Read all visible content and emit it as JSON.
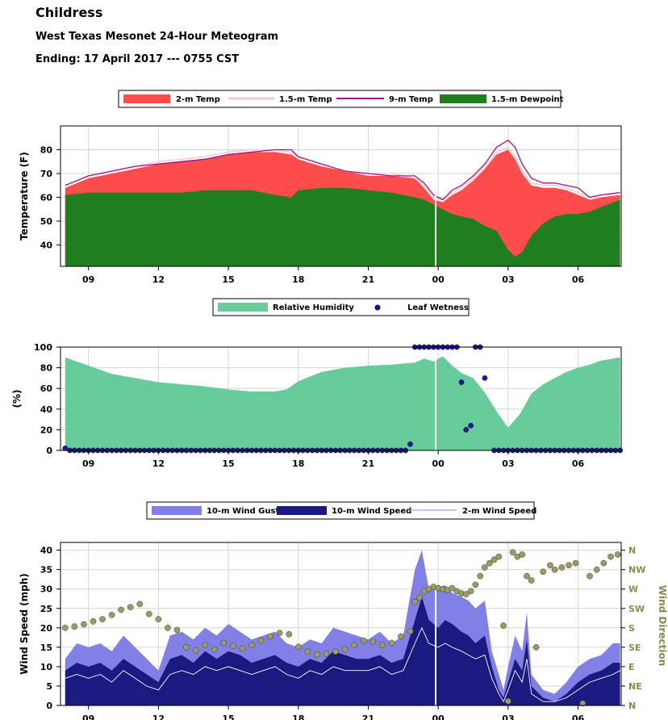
{
  "header": {
    "station": "Childress",
    "title": "West Texas Mesonet 24-Hour Meteogram",
    "ending": "Ending: 17 April 2017 --- 0755 CST"
  },
  "x_ticks": [
    "09",
    "12",
    "15",
    "18",
    "21",
    "00",
    "03",
    "06"
  ],
  "chart_data": [
    {
      "type": "area",
      "ylabel": "Temperature (F)",
      "ylim": [
        31,
        90
      ],
      "yticks": [
        40,
        50,
        60,
        70,
        80
      ],
      "hours": [
        8.0,
        9.0,
        10.0,
        11.0,
        12.0,
        13.0,
        14.0,
        15.0,
        16.0,
        17.0,
        17.7,
        18.0,
        19.0,
        20.0,
        21.0,
        22.0,
        23.0,
        23.4,
        23.8,
        24.2,
        24.6,
        25.0,
        25.5,
        26.0,
        26.5,
        27.0,
        27.3,
        27.6,
        28.0,
        28.5,
        29.0,
        29.5,
        30.0,
        30.5,
        31.0,
        31.8
      ],
      "legend": [
        "2-m Temp",
        "1.5-m Temp",
        "9-m Temp",
        "1.5-m Dewpoint"
      ],
      "colors": {
        "temp2m": "#ff4d4d",
        "temp15m": "#ffc8c8",
        "temp9m": "#a0108c",
        "dewpoint": "#1f7f1f"
      },
      "temp_2m": [
        64,
        68,
        70,
        72,
        74,
        75,
        76,
        78,
        79,
        79,
        78,
        76,
        73,
        71,
        69,
        69,
        68,
        64,
        59,
        58,
        61,
        63,
        67,
        72,
        78,
        80,
        76,
        70,
        65,
        64,
        64,
        63,
        61,
        59,
        60,
        61
      ],
      "temp_15m": [
        65,
        69,
        71,
        73,
        75,
        76,
        77,
        79,
        80,
        80,
        79,
        77,
        74,
        71,
        70,
        70,
        68,
        65,
        60,
        59,
        62,
        64,
        68,
        73,
        79,
        81,
        77,
        71,
        66,
        65,
        65,
        64,
        62,
        60,
        61,
        62
      ],
      "temp_9m": [
        65,
        69,
        71,
        73,
        74,
        75,
        76,
        78,
        79,
        80,
        80,
        77,
        74,
        71,
        70,
        69,
        69,
        66,
        61,
        59,
        63,
        65,
        69,
        74,
        81,
        84,
        81,
        74,
        68,
        66,
        66,
        65,
        64,
        60,
        61,
        62
      ],
      "dewpoint": [
        61,
        62,
        62,
        62,
        62,
        62,
        63,
        63,
        63,
        61,
        60,
        63,
        64,
        64,
        63,
        62,
        60,
        59,
        57,
        55,
        53,
        52,
        51,
        48,
        46,
        38,
        35,
        37,
        44,
        49,
        52,
        53,
        53,
        54,
        56,
        59
      ]
    },
    {
      "type": "area",
      "ylabel": "(%)",
      "ylim": [
        0,
        100
      ],
      "yticks": [
        0,
        20,
        40,
        60,
        80,
        100
      ],
      "legend": [
        "Relative Humidity",
        "Leaf Wetness"
      ],
      "colors": {
        "rh": "#66cc99",
        "leaf": "#1a1aa0"
      },
      "hours": [
        8.0,
        9.0,
        10.0,
        11.0,
        12.0,
        13.0,
        14.0,
        15.0,
        16.0,
        17.0,
        17.5,
        18.0,
        19.0,
        20.0,
        21.0,
        22.0,
        23.0,
        23.4,
        23.8,
        24.2,
        24.6,
        25.0,
        25.5,
        26.0,
        26.5,
        27.0,
        27.5,
        28.0,
        28.5,
        29.0,
        29.5,
        30.0,
        30.5,
        31.0,
        31.8
      ],
      "rh": [
        90,
        82,
        74,
        70,
        66,
        64,
        62,
        59,
        57,
        57,
        59,
        67,
        76,
        80,
        82,
        83,
        85,
        89,
        86,
        91,
        82,
        75,
        70,
        56,
        38,
        22,
        35,
        55,
        64,
        70,
        76,
        80,
        83,
        87,
        90
      ],
      "leaf_wetness": [
        [
          8.0,
          2
        ],
        [
          8.2,
          0
        ],
        [
          8.4,
          0
        ],
        [
          8.6,
          0
        ],
        [
          8.8,
          0
        ],
        [
          9.0,
          0
        ],
        [
          9.2,
          0
        ],
        [
          9.4,
          0
        ],
        [
          9.6,
          0
        ],
        [
          9.8,
          0
        ],
        [
          10.0,
          0
        ],
        [
          10.2,
          0
        ],
        [
          10.4,
          0
        ],
        [
          10.6,
          0
        ],
        [
          10.8,
          0
        ],
        [
          11.0,
          0
        ],
        [
          11.2,
          0
        ],
        [
          11.4,
          0
        ],
        [
          11.6,
          0
        ],
        [
          11.8,
          0
        ],
        [
          12.0,
          0
        ],
        [
          12.2,
          0
        ],
        [
          12.4,
          0
        ],
        [
          12.6,
          0
        ],
        [
          12.8,
          0
        ],
        [
          13.0,
          0
        ],
        [
          13.2,
          0
        ],
        [
          13.4,
          0
        ],
        [
          13.6,
          0
        ],
        [
          13.8,
          0
        ],
        [
          14.0,
          0
        ],
        [
          14.2,
          0
        ],
        [
          14.4,
          0
        ],
        [
          14.6,
          0
        ],
        [
          14.8,
          0
        ],
        [
          15.0,
          0
        ],
        [
          15.2,
          0
        ],
        [
          15.4,
          0
        ],
        [
          15.6,
          0
        ],
        [
          15.8,
          0
        ],
        [
          16.0,
          0
        ],
        [
          16.2,
          0
        ],
        [
          16.4,
          0
        ],
        [
          16.6,
          0
        ],
        [
          16.8,
          0
        ],
        [
          17.0,
          0
        ],
        [
          17.2,
          0
        ],
        [
          17.4,
          0
        ],
        [
          17.6,
          0
        ],
        [
          17.8,
          0
        ],
        [
          18.0,
          0
        ],
        [
          18.2,
          0
        ],
        [
          18.4,
          0
        ],
        [
          18.6,
          0
        ],
        [
          18.8,
          0
        ],
        [
          19.0,
          0
        ],
        [
          19.2,
          0
        ],
        [
          19.4,
          0
        ],
        [
          19.6,
          0
        ],
        [
          19.8,
          0
        ],
        [
          20.0,
          0
        ],
        [
          20.2,
          0
        ],
        [
          20.4,
          0
        ],
        [
          20.6,
          0
        ],
        [
          20.8,
          0
        ],
        [
          21.0,
          0
        ],
        [
          21.2,
          0
        ],
        [
          21.4,
          0
        ],
        [
          21.6,
          0
        ],
        [
          21.8,
          0
        ],
        [
          22.0,
          0
        ],
        [
          22.2,
          0
        ],
        [
          22.4,
          0
        ],
        [
          22.6,
          0
        ],
        [
          22.8,
          6
        ],
        [
          23.0,
          100
        ],
        [
          23.2,
          100
        ],
        [
          23.4,
          100
        ],
        [
          23.6,
          100
        ],
        [
          23.8,
          100
        ],
        [
          24.0,
          100
        ],
        [
          24.2,
          100
        ],
        [
          24.4,
          100
        ],
        [
          24.6,
          100
        ],
        [
          24.8,
          100
        ],
        [
          25.0,
          66
        ],
        [
          25.2,
          20
        ],
        [
          25.4,
          24
        ],
        [
          25.6,
          100
        ],
        [
          25.8,
          100
        ],
        [
          26.0,
          70
        ],
        [
          26.4,
          0
        ],
        [
          26.6,
          0
        ],
        [
          26.8,
          0
        ],
        [
          27.0,
          0
        ],
        [
          27.2,
          0
        ],
        [
          27.4,
          0
        ],
        [
          27.6,
          0
        ],
        [
          27.8,
          0
        ],
        [
          28.0,
          0
        ],
        [
          28.2,
          0
        ],
        [
          28.4,
          0
        ],
        [
          28.6,
          0
        ],
        [
          28.8,
          0
        ],
        [
          29.0,
          0
        ],
        [
          29.2,
          0
        ],
        [
          29.4,
          0
        ],
        [
          29.6,
          0
        ],
        [
          29.8,
          0
        ],
        [
          30.0,
          0
        ],
        [
          30.2,
          0
        ],
        [
          30.4,
          0
        ],
        [
          30.6,
          0
        ],
        [
          30.8,
          0
        ],
        [
          31.0,
          0
        ],
        [
          31.2,
          0
        ],
        [
          31.4,
          0
        ],
        [
          31.6,
          0
        ],
        [
          31.8,
          0
        ]
      ]
    },
    {
      "type": "area",
      "ylabel": "Wind Speed (mph)",
      "y2label": "Wind Direction",
      "ylim": [
        0,
        42
      ],
      "yticks": [
        0,
        5,
        10,
        15,
        20,
        25,
        30,
        35,
        40
      ],
      "direction_ticks": [
        "N",
        "NE",
        "E",
        "SE",
        "S",
        "SW",
        "W",
        "NW",
        "N"
      ],
      "legend": [
        "10-m Wind Gust",
        "10-m Wind Speed",
        "2-m Wind Speed"
      ],
      "colors": {
        "gust": "#8080e6",
        "speed": "#1a1a80",
        "speed2m": "#ffffff",
        "direction": "#9a9a6a",
        "axis2": "#8a8a4a"
      },
      "hours": [
        8.0,
        8.5,
        9.0,
        9.5,
        10.0,
        10.5,
        11.0,
        11.5,
        12.0,
        12.5,
        13.0,
        13.5,
        14.0,
        14.5,
        15.0,
        15.5,
        16.0,
        16.5,
        17.0,
        17.5,
        18.0,
        18.5,
        19.0,
        19.5,
        20.0,
        20.5,
        21.0,
        21.5,
        22.0,
        22.5,
        23.0,
        23.3,
        23.6,
        24.0,
        24.3,
        24.6,
        25.0,
        25.3,
        25.6,
        26.0,
        26.3,
        26.6,
        26.8,
        27.0,
        27.3,
        27.6,
        27.8,
        28.0,
        28.5,
        29.0,
        29.5,
        30.0,
        30.5,
        31.0,
        31.5,
        31.8
      ],
      "gust": [
        12,
        16,
        15,
        16,
        14,
        18,
        15,
        12,
        9,
        18,
        19,
        17,
        20,
        18,
        21,
        19,
        17,
        18,
        19,
        16,
        15,
        17,
        16,
        20,
        19,
        18,
        17,
        19,
        16,
        18,
        35,
        40,
        30,
        30,
        31,
        29,
        28,
        27,
        25,
        27,
        14,
        8,
        4,
        10,
        18,
        14,
        24,
        8,
        4,
        3,
        6,
        10,
        12,
        13,
        16,
        16
      ],
      "speed": [
        9,
        11,
        10,
        11,
        9,
        12,
        10,
        8,
        6,
        12,
        13,
        11,
        14,
        12,
        14,
        13,
        11,
        12,
        13,
        11,
        10,
        12,
        11,
        14,
        13,
        12,
        12,
        13,
        11,
        12,
        22,
        28,
        22,
        20,
        22,
        21,
        19,
        18,
        16,
        18,
        10,
        4,
        2,
        6,
        12,
        9,
        17,
        5,
        2,
        1,
        3,
        6,
        8,
        9,
        11,
        11
      ],
      "speed_2m": [
        7,
        8,
        7,
        8,
        6,
        9,
        7,
        5,
        4,
        8,
        9,
        8,
        10,
        9,
        10,
        9,
        8,
        9,
        10,
        8,
        7,
        9,
        8,
        10,
        9,
        9,
        9,
        10,
        8,
        9,
        16,
        20,
        16,
        15,
        16,
        15,
        14,
        13,
        12,
        13,
        7,
        3,
        1,
        4,
        9,
        6,
        12,
        3,
        1,
        1,
        2,
        4,
        6,
        7,
        8,
        9
      ],
      "direction_deg": [
        [
          8.0,
          180
        ],
        [
          8.4,
          183
        ],
        [
          8.8,
          188
        ],
        [
          9.2,
          195
        ],
        [
          9.6,
          200
        ],
        [
          10.0,
          210
        ],
        [
          10.4,
          222
        ],
        [
          10.8,
          228
        ],
        [
          11.2,
          235
        ],
        [
          11.6,
          212
        ],
        [
          12.0,
          200
        ],
        [
          12.4,
          180
        ],
        [
          12.8,
          175
        ],
        [
          13.2,
          135
        ],
        [
          13.6,
          128
        ],
        [
          14.0,
          140
        ],
        [
          14.4,
          130
        ],
        [
          14.8,
          145
        ],
        [
          15.2,
          138
        ],
        [
          15.6,
          132
        ],
        [
          16.0,
          140
        ],
        [
          16.4,
          150
        ],
        [
          16.8,
          160
        ],
        [
          17.2,
          168
        ],
        [
          17.6,
          165
        ],
        [
          18.0,
          136
        ],
        [
          18.4,
          125
        ],
        [
          18.8,
          118
        ],
        [
          19.2,
          120
        ],
        [
          19.6,
          125
        ],
        [
          20.0,
          130
        ],
        [
          20.4,
          140
        ],
        [
          20.8,
          150
        ],
        [
          21.2,
          148
        ],
        [
          21.6,
          140
        ],
        [
          22.0,
          145
        ],
        [
          22.4,
          160
        ],
        [
          22.8,
          172
        ],
        [
          23.0,
          240
        ],
        [
          23.2,
          250
        ],
        [
          23.4,
          265
        ],
        [
          23.6,
          270
        ],
        [
          23.8,
          275
        ],
        [
          24.0,
          272
        ],
        [
          24.2,
          270
        ],
        [
          24.4,
          268
        ],
        [
          24.6,
          272
        ],
        [
          24.8,
          265
        ],
        [
          25.0,
          260
        ],
        [
          25.2,
          258
        ],
        [
          25.4,
          265
        ],
        [
          25.6,
          280
        ],
        [
          25.8,
          300
        ],
        [
          26.0,
          320
        ],
        [
          26.2,
          330
        ],
        [
          26.4,
          338
        ],
        [
          26.6,
          345
        ],
        [
          26.8,
          185
        ],
        [
          27.0,
          10
        ],
        [
          27.2,
          355
        ],
        [
          27.4,
          345
        ],
        [
          27.6,
          350
        ],
        [
          27.8,
          300
        ],
        [
          28.0,
          290
        ],
        [
          28.2,
          135
        ],
        [
          28.5,
          310
        ],
        [
          28.8,
          325
        ],
        [
          29.0,
          315
        ],
        [
          29.3,
          320
        ],
        [
          29.6,
          325
        ],
        [
          29.9,
          330
        ],
        [
          30.2,
          5
        ],
        [
          30.5,
          300
        ],
        [
          30.8,
          315
        ],
        [
          31.1,
          330
        ],
        [
          31.4,
          345
        ],
        [
          31.7,
          350
        ]
      ]
    }
  ]
}
